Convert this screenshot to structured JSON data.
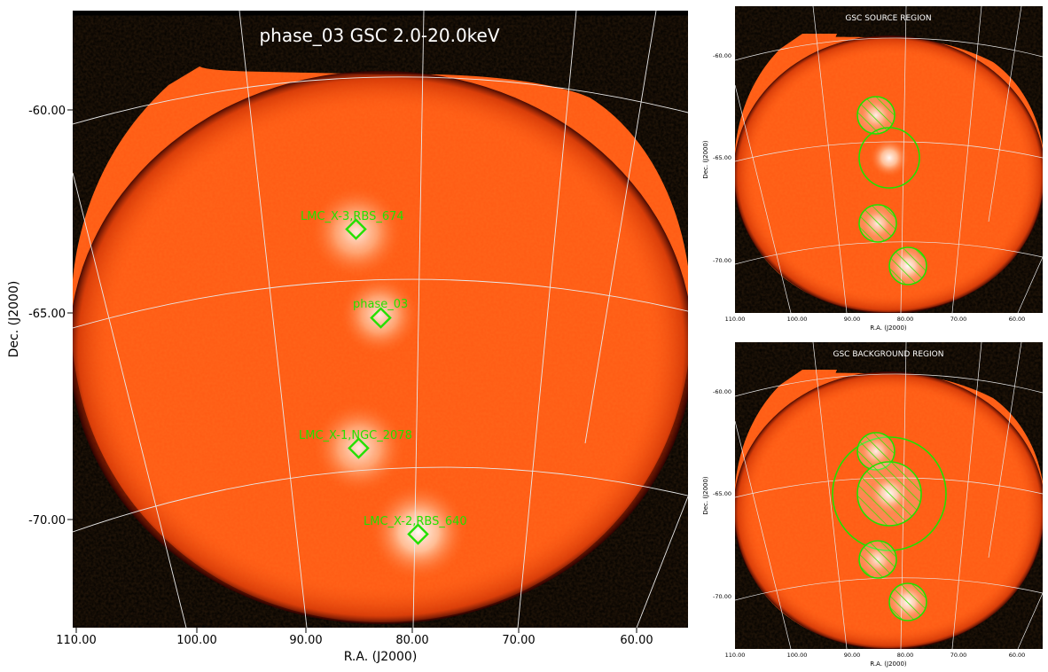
{
  "main": {
    "title": "phase_03 GSC 2.0-20.0keV",
    "xlabel": "R.A. (J2000)",
    "ylabel": "Dec. (J2000)",
    "x_ticks": [
      "110.00",
      "100.00",
      "90.00",
      "80.00",
      "70.00",
      "60.00"
    ],
    "y_ticks": [
      "-60.00",
      "-65.00",
      "-70.00"
    ],
    "sources": [
      {
        "label": "LMC_X-3,RBS_674"
      },
      {
        "label": "phase_03"
      },
      {
        "label": "LMC_X-1,NGC_2078"
      },
      {
        "label": "LMC_X-2,RBS_640"
      }
    ]
  },
  "panel_source": {
    "title": "GSC SOURCE REGION",
    "xlabel": "R.A. (J2000)",
    "ylabel": "Dec. (J2000)",
    "x_ticks": [
      "110.00",
      "100.00",
      "90.00",
      "80.00",
      "70.00",
      "60.00"
    ],
    "y_ticks": [
      "-60.00",
      "-65.00",
      "-70.00"
    ]
  },
  "panel_background": {
    "title": "GSC BACKGROUND REGION",
    "xlabel": "R.A. (J2000)",
    "ylabel": "Dec. (J2000)",
    "x_ticks": [
      "110.00",
      "100.00",
      "90.00",
      "80.00",
      "70.00",
      "60.00"
    ],
    "y_ticks": [
      "-60.00",
      "-65.00",
      "-70.00"
    ]
  },
  "colors": {
    "field": "#ff5a14",
    "source_glow": "#ffffff",
    "region": "#22e000",
    "grid": "#e6e6e6",
    "frame_bg": "#000000"
  }
}
